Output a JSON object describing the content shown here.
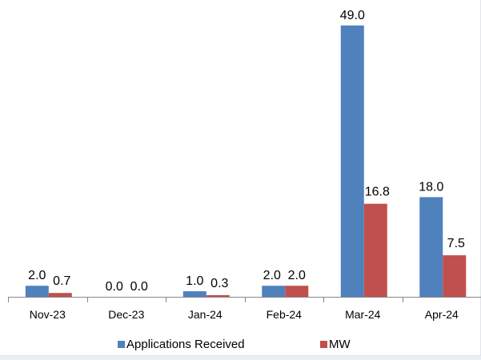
{
  "chart_data": {
    "type": "bar",
    "title": "",
    "xlabel": "",
    "ylabel": "",
    "categories": [
      "Nov-23",
      "Dec-23",
      "Jan-24",
      "Feb-24",
      "Mar-24",
      "Apr-24"
    ],
    "series": [
      {
        "name": "Applications Received",
        "color": "#4f81bd",
        "values": [
          2.0,
          0.0,
          1.0,
          2.0,
          49.0,
          18.0
        ],
        "labels": [
          "2.0",
          "0.0",
          "1.0",
          "2.0",
          "49.0",
          "18.0"
        ]
      },
      {
        "name": "MW",
        "color": "#c0504d",
        "values": [
          0.7,
          0.0,
          0.3,
          2.0,
          16.8,
          7.5
        ],
        "labels": [
          "0.7",
          "0.0",
          "0.3",
          "2.0",
          "16.8",
          "7.5"
        ]
      }
    ],
    "ylim": [
      0,
      52
    ],
    "grid": false,
    "legend": "bottom"
  }
}
